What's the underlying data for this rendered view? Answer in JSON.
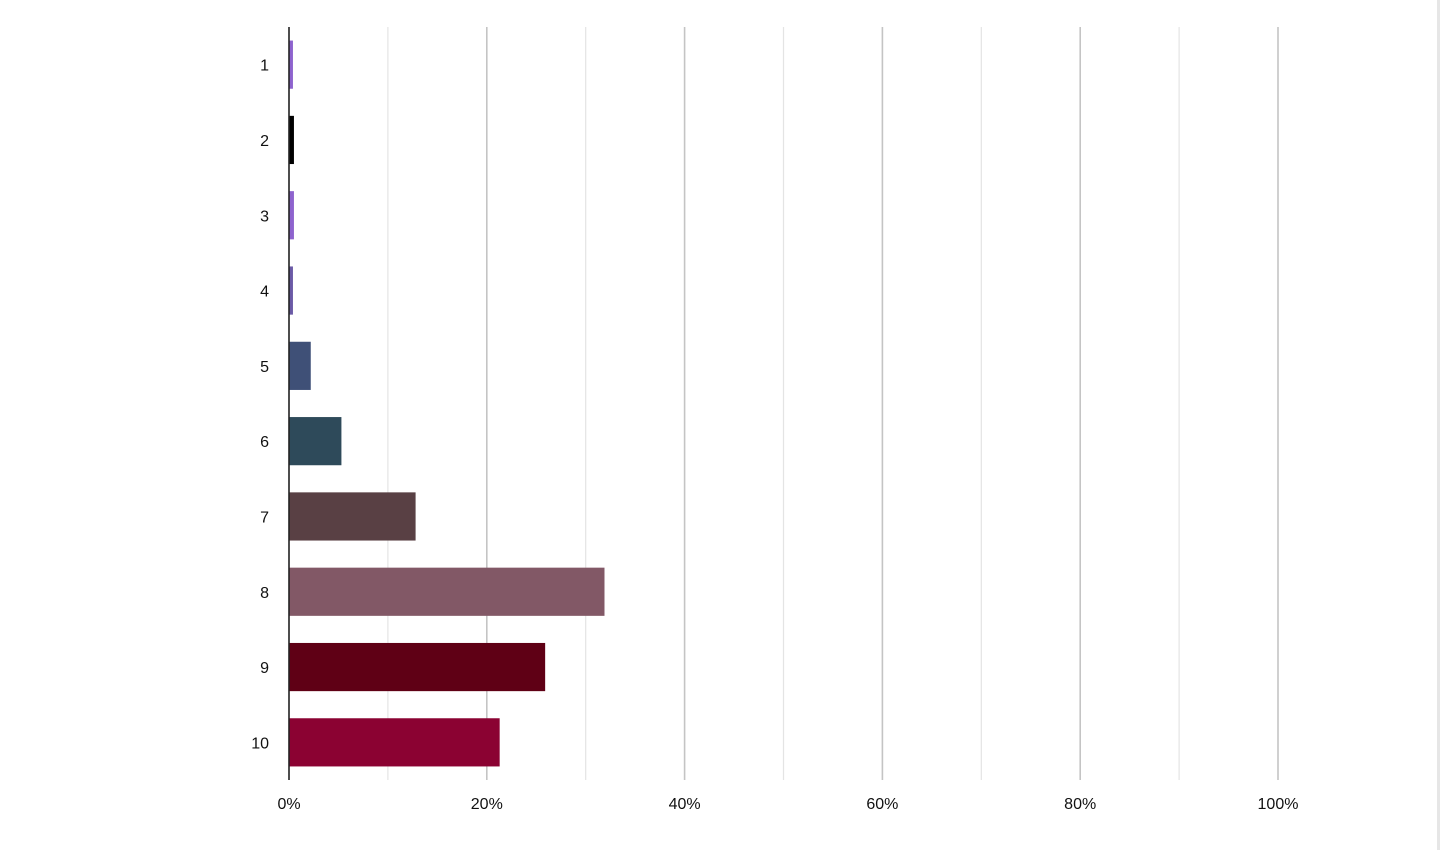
{
  "chart_data": {
    "type": "bar",
    "orientation": "horizontal",
    "categories": [
      "1",
      "2",
      "3",
      "4",
      "5",
      "6",
      "7",
      "8",
      "9",
      "10"
    ],
    "values": [
      0.4,
      0.5,
      0.5,
      0.4,
      2.2,
      5.3,
      12.8,
      31.9,
      25.9,
      21.3
    ],
    "colors": [
      "#8e63ce",
      "#000000",
      "#8e63ce",
      "#6b5aa6",
      "#3f5077",
      "#2e4a5a",
      "#594044",
      "#825866",
      "#5f0015",
      "#8b0232"
    ],
    "xlim": [
      0,
      100
    ],
    "x_tick_labels": [
      "0%",
      "20%",
      "40%",
      "60%",
      "80%",
      "100%"
    ],
    "x_tick_values": [
      0,
      20,
      40,
      60,
      80,
      100
    ],
    "grid": true,
    "title": "",
    "xlabel": "",
    "ylabel": ""
  }
}
